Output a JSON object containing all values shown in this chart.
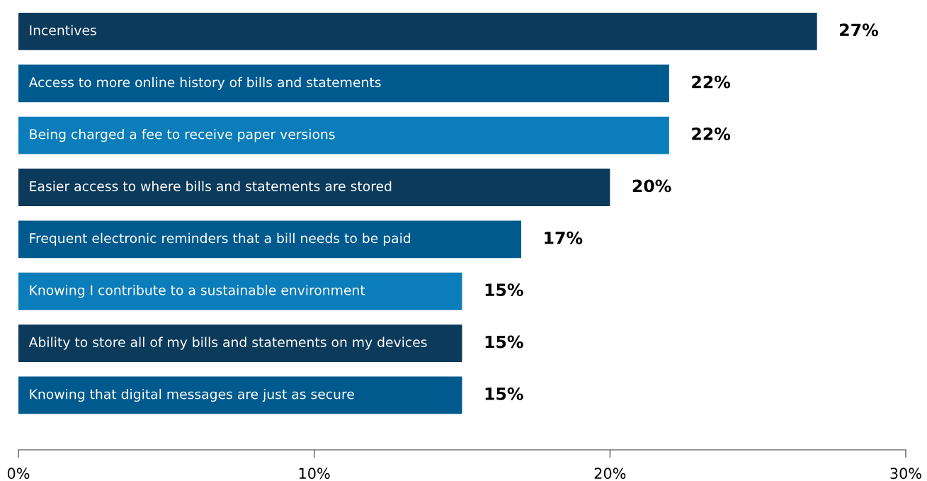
{
  "chart_data": {
    "type": "bar",
    "orientation": "horizontal",
    "categories": [
      "Incentives",
      "Access to more online history of bills and statements",
      "Being charged a fee to receive paper versions",
      "Easier access to where bills and statements are stored",
      "Frequent electronic reminders that a bill needs to be paid",
      "Knowing I contribute to a sustainable environment",
      "Ability to store all of my bills and statements on my devices",
      "Knowing that digital messages are just as secure"
    ],
    "values": [
      27,
      22,
      22,
      20,
      17,
      15,
      15,
      15
    ],
    "colors": [
      "#0b3a5a",
      "#005a8e",
      "#0b7dba",
      "#0b3a5a",
      "#005a8e",
      "#0b7dba",
      "#0b3a5a",
      "#005a8e"
    ],
    "xlim": [
      0,
      30
    ],
    "xticks": [
      {
        "value": 0,
        "label": "0%"
      },
      {
        "value": 10,
        "label": "10%"
      },
      {
        "value": 20,
        "label": "20%"
      },
      {
        "value": 30,
        "label": "30%"
      }
    ],
    "value_labels": [
      "27%",
      "22%",
      "22%",
      "20%",
      "17%",
      "15%",
      "15%",
      "15%"
    ],
    "grid": false,
    "legend": false
  }
}
